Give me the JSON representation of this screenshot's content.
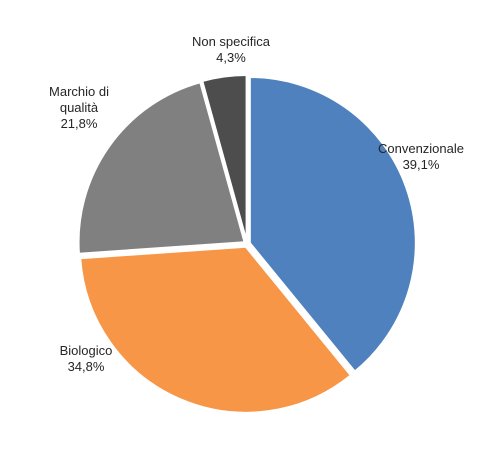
{
  "chart_data": {
    "type": "pie",
    "title": "",
    "slices": [
      {
        "name": "Convenzionale",
        "value": 39.1,
        "value_label": "39,1%",
        "color": "#4e81bd"
      },
      {
        "name": "Biologico",
        "value": 34.8,
        "value_label": "34,8%",
        "color": "#f79646"
      },
      {
        "name": "Marchio di qualità",
        "name_lines": [
          "Marchio di",
          "qualità"
        ],
        "value": 21.8,
        "value_label": "21,8%",
        "color": "#808080"
      },
      {
        "name": "Non specifica",
        "value": 4.3,
        "value_label": "4,3%",
        "color": "#4d4d4d"
      }
    ],
    "start_angle_deg": 0,
    "direction": "clockwise",
    "exploded": true,
    "legend": "none"
  }
}
